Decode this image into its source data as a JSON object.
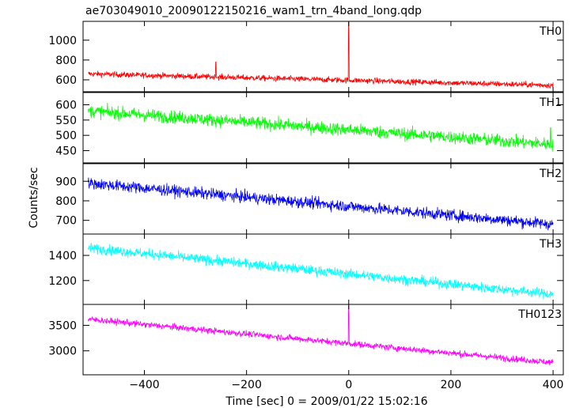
{
  "chart_data": {
    "type": "line",
    "title": "ae703049010_20090122150216_wam1_trn_4band_long.qdp",
    "xlabel": "Time [sec] 0 = 2009/01/22 15:02:16",
    "ylabel": "Counts/sec",
    "xlim": [
      -520,
      420
    ],
    "x_ticks": [
      -400,
      -200,
      0,
      200,
      400
    ],
    "x_tick_labels": [
      "−400",
      "−200",
      "0",
      "200",
      "400"
    ],
    "panels": [
      {
        "name": "TH0",
        "color": "#ff0000",
        "ylim": [
          480,
          1190
        ],
        "y_ticks": [
          600,
          800,
          1000
        ],
        "y_tick_labels": [
          "600",
          "800",
          "1000"
        ],
        "trend_start": 660,
        "trend_end": 545,
        "noise": 28,
        "spikes": [
          {
            "x": 0,
            "y": 1180
          },
          {
            "x": -260,
            "y": 780
          }
        ]
      },
      {
        "name": "TH1",
        "color": "#00ff00",
        "ylim": [
          410,
          640
        ],
        "y_ticks": [
          450,
          500,
          550,
          600
        ],
        "y_tick_labels": [
          "450",
          "500",
          "550",
          "600"
        ],
        "trend_start": 580,
        "trend_end": 470,
        "noise": 20,
        "spikes": [
          {
            "x": 395,
            "y": 525
          }
        ]
      },
      {
        "name": "TH2",
        "color": "#0000ff",
        "ylim": [
          630,
          990
        ],
        "y_ticks": [
          700,
          800,
          900
        ],
        "y_tick_labels": [
          "700",
          "800",
          "900"
        ],
        "trend_start": 890,
        "trend_end": 680,
        "noise": 28,
        "spikes": []
      },
      {
        "name": "TH3",
        "color": "#00ffff",
        "ylim": [
          1010,
          1570
        ],
        "y_ticks": [
          1200,
          1400
        ],
        "y_tick_labels": [
          "1200",
          "1400"
        ],
        "trend_start": 1460,
        "trend_end": 1090,
        "noise": 38,
        "spikes": []
      },
      {
        "name": "TH0123",
        "color": "#ff00ff",
        "ylim": [
          2530,
          3910
        ],
        "y_ticks": [
          3000,
          3500
        ],
        "y_tick_labels": [
          "3000",
          "3500"
        ],
        "trend_start": 3620,
        "trend_end": 2770,
        "noise": 60,
        "spikes": [
          {
            "x": 0,
            "y": 3880
          }
        ]
      }
    ]
  }
}
